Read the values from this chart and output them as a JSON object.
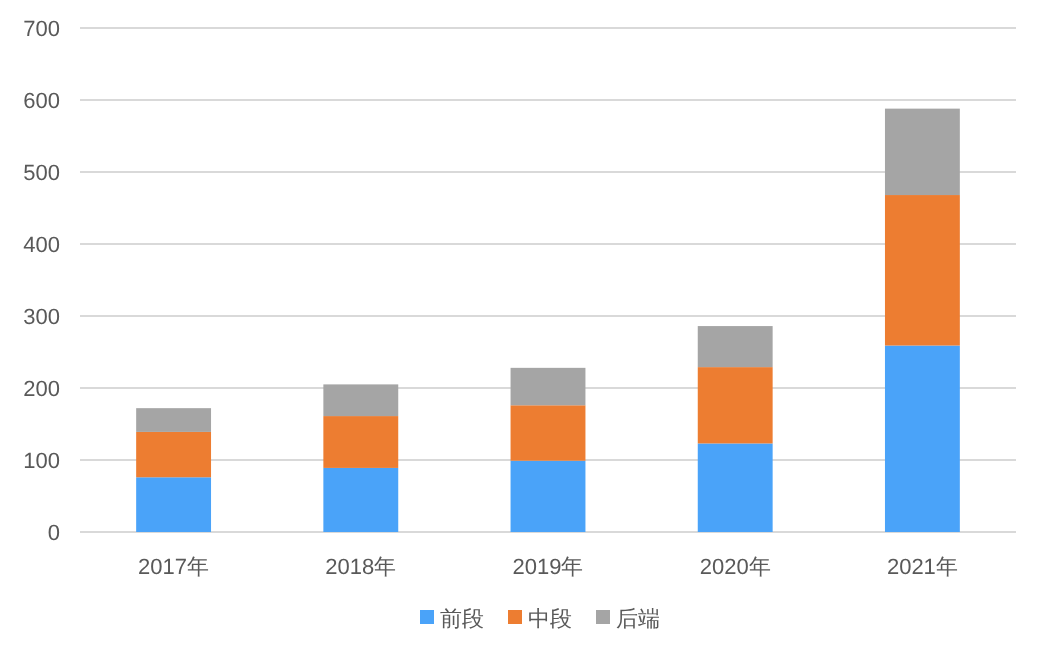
{
  "chart_data": {
    "type": "bar",
    "stacked": true,
    "categories": [
      "2017年",
      "2018年",
      "2019年",
      "2020年",
      "2021年"
    ],
    "series": [
      {
        "name": "前段",
        "color": "#4aa3f9",
        "values": [
          76,
          89,
          99,
          123,
          259
        ]
      },
      {
        "name": "中段",
        "color": "#ed7d31",
        "values": [
          63,
          72,
          77,
          106,
          209
        ]
      },
      {
        "name": "后端",
        "color": "#a5a5a5",
        "values": [
          33,
          44,
          52,
          57,
          120
        ]
      }
    ],
    "ylim": [
      0,
      700
    ],
    "yticks": [
      0,
      100,
      200,
      300,
      400,
      500,
      600,
      700
    ],
    "grid": "y",
    "legend": "bottom"
  }
}
